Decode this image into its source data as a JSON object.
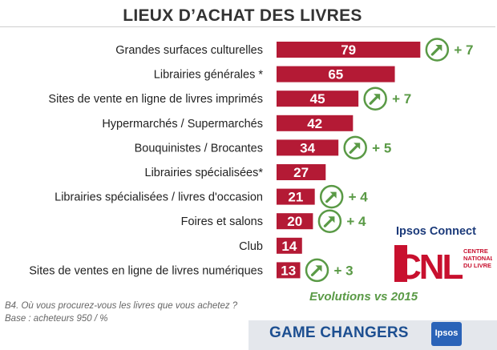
{
  "title": "LIEUX D’ACHAT DES LIVRES",
  "chart_data": {
    "type": "bar",
    "orientation": "horizontal",
    "categories": [
      "Grandes surfaces culturelles",
      "Librairies générales *",
      "Sites de vente en ligne de livres imprimés",
      "Hypermarchés / Supermarchés",
      "Bouquinistes / Brocantes",
      "Librairies spécialisées*",
      "Librairies spécialisées / livres d'occasion",
      "Foires et salons",
      "Club",
      "Sites de ventes en ligne de livres numériques"
    ],
    "values": [
      79,
      65,
      45,
      42,
      34,
      27,
      21,
      20,
      14,
      13
    ],
    "evolution": [
      "+ 7",
      null,
      "+ 7",
      null,
      "+ 5",
      null,
      "+ 4",
      "+ 4",
      null,
      "+ 3"
    ],
    "bar_color": "#b41a35",
    "evolution_color": "#5a9a46",
    "xlim": [
      0,
      100
    ]
  },
  "evolution_note": "Evolutions vs 2015",
  "question": "B4. Où vous procurez-vous les livres que vous achetez ?",
  "base": "Base : acheteurs 950 / %",
  "ipsos_connect": "Ipsos Connect",
  "cnl_logo_text": "CNL",
  "cnl_subtitle": [
    "CENTRE",
    "NATIONAL",
    "DU LIVRE"
  ],
  "game_changers": "GAME CHANGERS",
  "ipsos_badge": "Ipsos"
}
